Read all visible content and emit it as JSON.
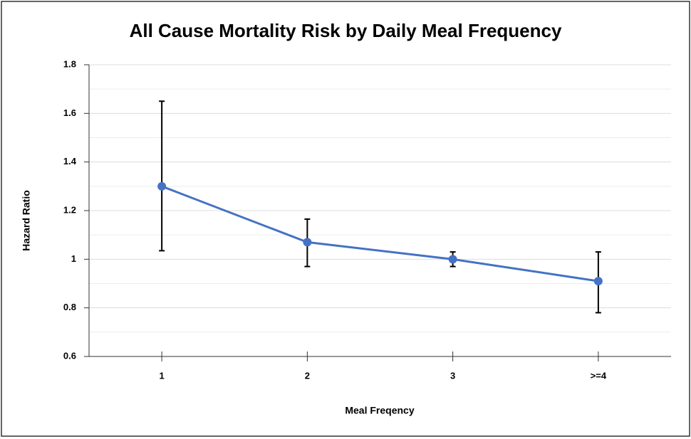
{
  "chart_data": {
    "type": "line",
    "title": "All Cause Mortality Risk by Daily Meal Frequency",
    "x_label": "Meal Freqency",
    "y_label": "Hazard Ratio",
    "categories": [
      "1",
      "2",
      "3",
      ">=4"
    ],
    "values": [
      1.3,
      1.07,
      1.0,
      0.91
    ],
    "ci_lower": [
      1.035,
      0.97,
      0.97,
      0.78
    ],
    "ci_upper": [
      1.65,
      1.165,
      1.03,
      1.03
    ],
    "color": "#4472c4",
    "ylim": [
      0.6,
      1.8
    ],
    "yticks": [
      0.6,
      0.8,
      1,
      1.2,
      1.4,
      1.6,
      1.8
    ],
    "minor_yticks": [
      0.7,
      0.9,
      1.1,
      1.3,
      1.5,
      1.7
    ],
    "grid": true
  }
}
